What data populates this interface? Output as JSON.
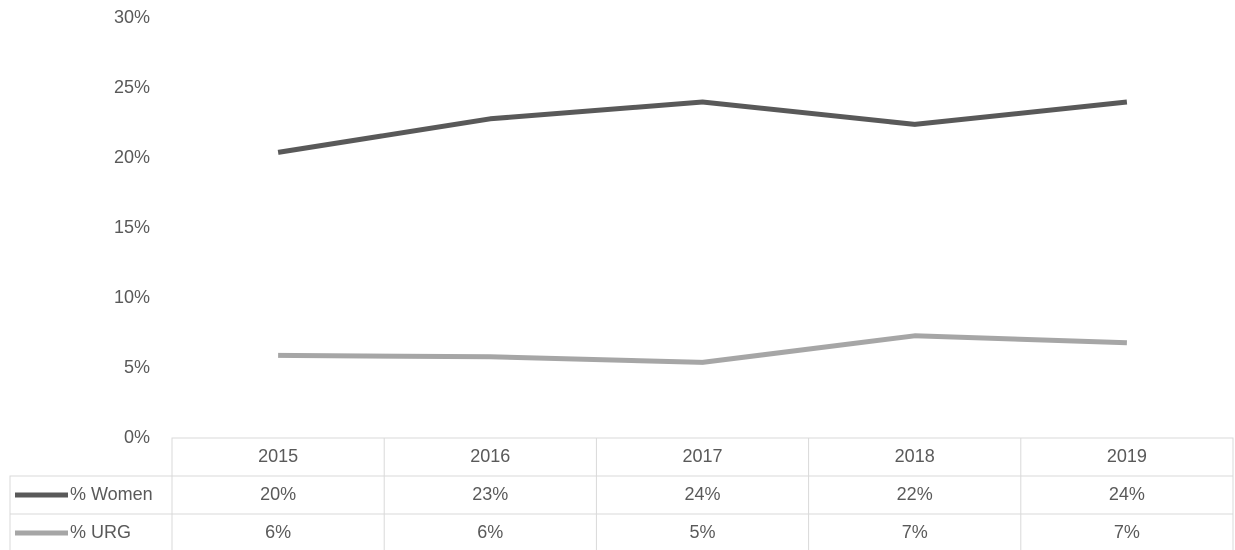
{
  "chart_data": {
    "type": "line",
    "categories": [
      "2015",
      "2016",
      "2017",
      "2018",
      "2019"
    ],
    "series": [
      {
        "name": "% Women",
        "color": "#595959",
        "values": [
          20.4,
          22.8,
          24.0,
          22.4,
          24.0
        ],
        "value_labels": [
          "20%",
          "23%",
          "24%",
          "22%",
          "24%"
        ]
      },
      {
        "name": "% URG",
        "color": "#a6a6a6",
        "values": [
          5.9,
          5.8,
          5.4,
          7.3,
          6.8
        ],
        "value_labels": [
          "6%",
          "6%",
          "5%",
          "7%",
          "7%"
        ]
      }
    ],
    "ylim": [
      0,
      30
    ],
    "yticks": [
      {
        "value": 0,
        "label": "0%"
      },
      {
        "value": 5,
        "label": "5%"
      },
      {
        "value": 10,
        "label": "10%"
      },
      {
        "value": 15,
        "label": "15%"
      },
      {
        "value": 20,
        "label": "20%"
      },
      {
        "value": 25,
        "label": "25%"
      },
      {
        "value": 30,
        "label": "30%"
      }
    ]
  }
}
